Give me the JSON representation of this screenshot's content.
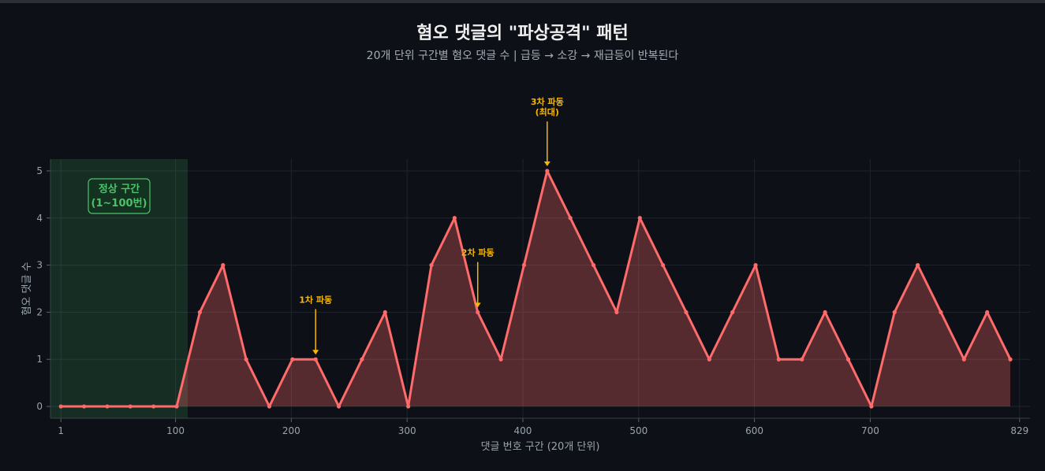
{
  "chart_data": {
    "type": "line",
    "title": "혐오 댓글의 \"파상공격\" 패턴",
    "subtitle": "20개 단위 구간별 혐오 댓글 수 | 급등 → 소강 → 재급등이 반복된다",
    "xlabel": "댓글 번호 구간 (20개 단위)",
    "ylabel": "혐오 댓글 수",
    "xlim": [
      -8,
      838
    ],
    "ylim": [
      -0.25,
      5.25
    ],
    "x_ticks": [
      1,
      100,
      200,
      300,
      400,
      500,
      600,
      700,
      829
    ],
    "y_ticks": [
      0,
      1,
      2,
      3,
      4,
      5
    ],
    "grid": true,
    "series": [
      {
        "color": "#ff6b6b",
        "x": [
          1,
          21,
          41,
          61,
          81,
          101,
          121,
          141,
          161,
          181,
          201,
          221,
          241,
          261,
          281,
          301,
          321,
          341,
          361,
          381,
          401,
          421,
          441,
          461,
          481,
          501,
          521,
          541,
          561,
          581,
          601,
          621,
          641,
          661,
          681,
          701,
          721,
          741,
          761,
          781,
          801,
          821
        ],
        "values": [
          0,
          0,
          0,
          0,
          0,
          0,
          2,
          3,
          1,
          0,
          1,
          1,
          0,
          1,
          2,
          0,
          3,
          4,
          2,
          1,
          3,
          5,
          4,
          3,
          2,
          4,
          3,
          2,
          1,
          2,
          3,
          1,
          1,
          2,
          1,
          0,
          2,
          3,
          2,
          1,
          2,
          1
        ]
      }
    ],
    "highlight_region": {
      "x_start": 1,
      "x_end": 101,
      "label_line1": "정상 구간",
      "label_line2": "(1~100번)",
      "color": "#4cc26a"
    },
    "annotations": [
      {
        "lines": [
          "1차 파동"
        ],
        "x": 221,
        "y": 1,
        "text_y": 2.2
      },
      {
        "lines": [
          "2차 파동"
        ],
        "x": 361,
        "y": 2,
        "text_y": 3.2
      },
      {
        "lines": [
          "3차 파동",
          "(최대)"
        ],
        "x": 421,
        "y": 5,
        "text_y": 6.4
      }
    ]
  }
}
